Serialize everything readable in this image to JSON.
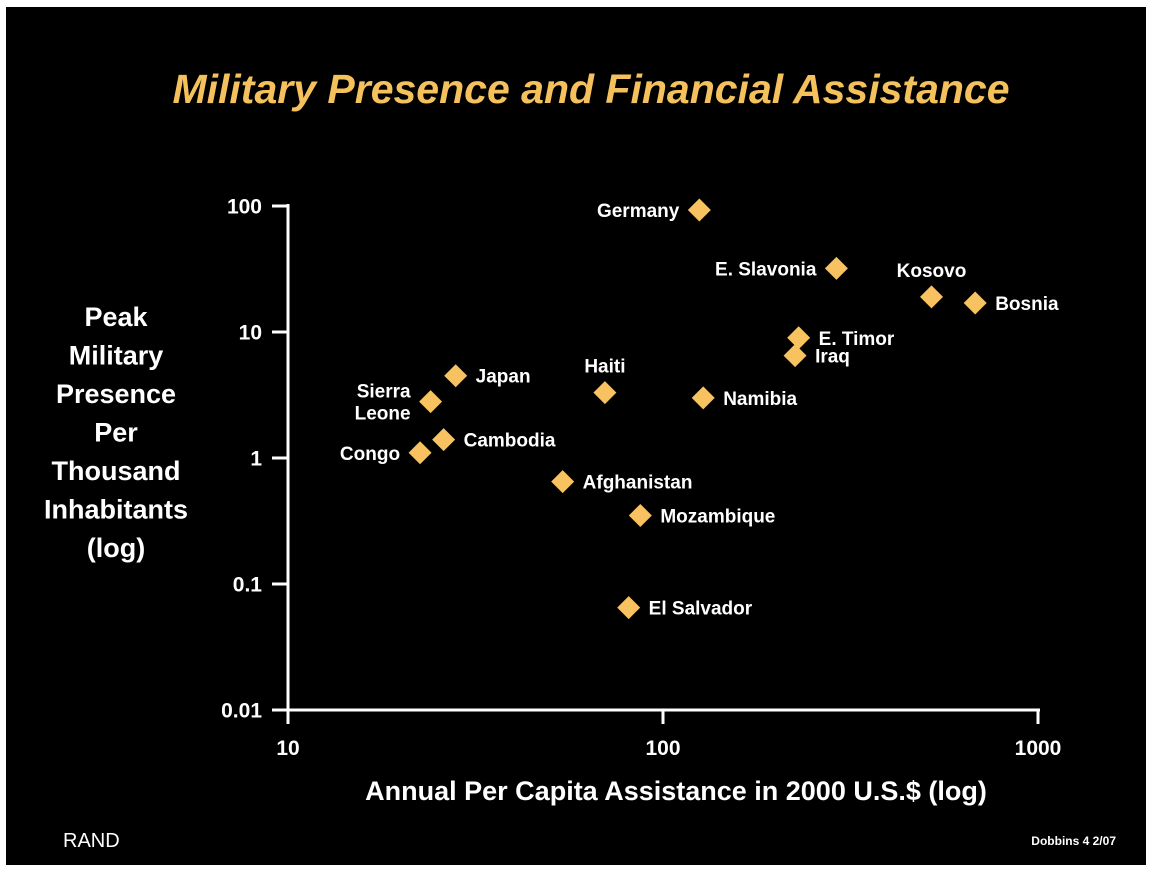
{
  "colors": {
    "background": "#000000",
    "title": "#f5c15c",
    "marker": "#f8c260",
    "axis": "#ffffff",
    "text": "#ffffff"
  },
  "footer": {
    "left": "RAND",
    "right": "Dobbins 4  2/07"
  },
  "chart_data": {
    "type": "scatter",
    "title": "Military Presence and Financial Assistance",
    "xlabel": "Annual Per Capita Assistance in 2000 U.S.$ (log)",
    "ylabel_lines": [
      "Peak",
      "Military",
      "Presence",
      "Per",
      "Thousand",
      "Inhabitants",
      "(log)"
    ],
    "x_scale": "log",
    "y_scale": "log",
    "xlim": [
      10,
      1000
    ],
    "ylim": [
      0.01,
      100
    ],
    "x_ticks": [
      {
        "value": 10,
        "label": "10"
      },
      {
        "value": 100,
        "label": "100"
      },
      {
        "value": 1000,
        "label": "1000"
      }
    ],
    "y_ticks": [
      {
        "value": 100,
        "label": "100"
      },
      {
        "value": 10,
        "label": "10"
      },
      {
        "value": 1,
        "label": "1"
      },
      {
        "value": 0.1,
        "label": "0.1"
      },
      {
        "value": 0.01,
        "label": "0.01"
      }
    ],
    "grid": false,
    "marker": "diamond",
    "points": [
      {
        "label": [
          "Germany"
        ],
        "x": 125,
        "y": 93,
        "label_side": "left"
      },
      {
        "label": [
          "E. Slavonia"
        ],
        "x": 290,
        "y": 32,
        "label_side": "left"
      },
      {
        "label": [
          "Kosovo"
        ],
        "x": 520,
        "y": 19,
        "label_side": "above"
      },
      {
        "label": [
          "Bosnia"
        ],
        "x": 680,
        "y": 17,
        "label_side": "right"
      },
      {
        "label": [
          "E. Timor"
        ],
        "x": 230,
        "y": 9,
        "label_side": "right"
      },
      {
        "label": [
          "Iraq"
        ],
        "x": 225,
        "y": 6.5,
        "label_side": "right"
      },
      {
        "label": [
          "Japan"
        ],
        "x": 28,
        "y": 4.5,
        "label_side": "right"
      },
      {
        "label": [
          "Haiti"
        ],
        "x": 70,
        "y": 3.3,
        "label_side": "above"
      },
      {
        "label": [
          "Namibia"
        ],
        "x": 128,
        "y": 3.0,
        "label_side": "right"
      },
      {
        "label": [
          "Sierra",
          "Leone"
        ],
        "x": 24,
        "y": 2.8,
        "label_side": "left"
      },
      {
        "label": [
          "Cambodia"
        ],
        "x": 26,
        "y": 1.4,
        "label_side": "right"
      },
      {
        "label": [
          "Congo"
        ],
        "x": 22.5,
        "y": 1.1,
        "label_side": "left"
      },
      {
        "label": [
          "Afghanistan"
        ],
        "x": 54,
        "y": 0.65,
        "label_side": "right"
      },
      {
        "label": [
          "Mozambique"
        ],
        "x": 87,
        "y": 0.35,
        "label_side": "right"
      },
      {
        "label": [
          "El Salvador"
        ],
        "x": 81,
        "y": 0.065,
        "label_side": "right"
      }
    ]
  }
}
